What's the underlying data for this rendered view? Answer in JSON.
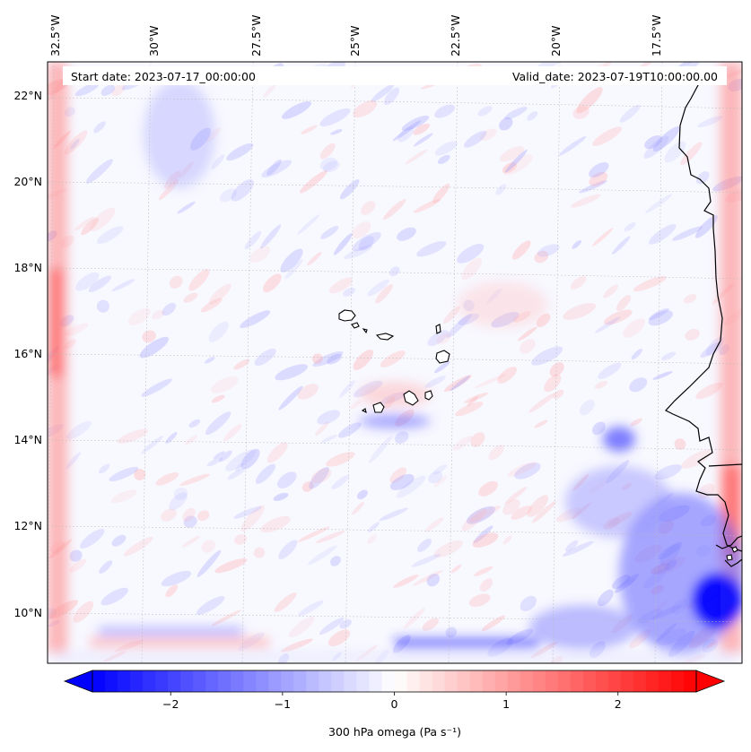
{
  "header": {
    "start_date": "Start date: 2023-07-17_00:00:00",
    "valid_date": "Valid_date: 2023-07-19T10:00:00.00"
  },
  "axes": {
    "lon_labels": [
      "32.5°W",
      "30°W",
      "27.5°W",
      "25°W",
      "22.5°W",
      "20°W",
      "17.5°W"
    ],
    "lat_labels": [
      "22°N",
      "20°N",
      "18°N",
      "16°N",
      "14°N",
      "12°N",
      "10°N"
    ],
    "gridlines": true
  },
  "field": {
    "variable": "300 hPa omega",
    "colormap": "bwr",
    "colors": {
      "negative": "#0000ff",
      "zero": "#ffffff",
      "positive": "#ff0000",
      "coast": "#000000"
    }
  },
  "colorbar": {
    "label": "300 hPa omega (Pa s⁻¹)",
    "min": -2.7,
    "max": 2.7,
    "extend": "both",
    "ticks": [
      {
        "value": -2,
        "text": "−2"
      },
      {
        "value": -1,
        "text": "−1"
      },
      {
        "value": 0,
        "text": "0"
      },
      {
        "value": 1,
        "text": "1"
      },
      {
        "value": 2,
        "text": "2"
      }
    ]
  }
}
